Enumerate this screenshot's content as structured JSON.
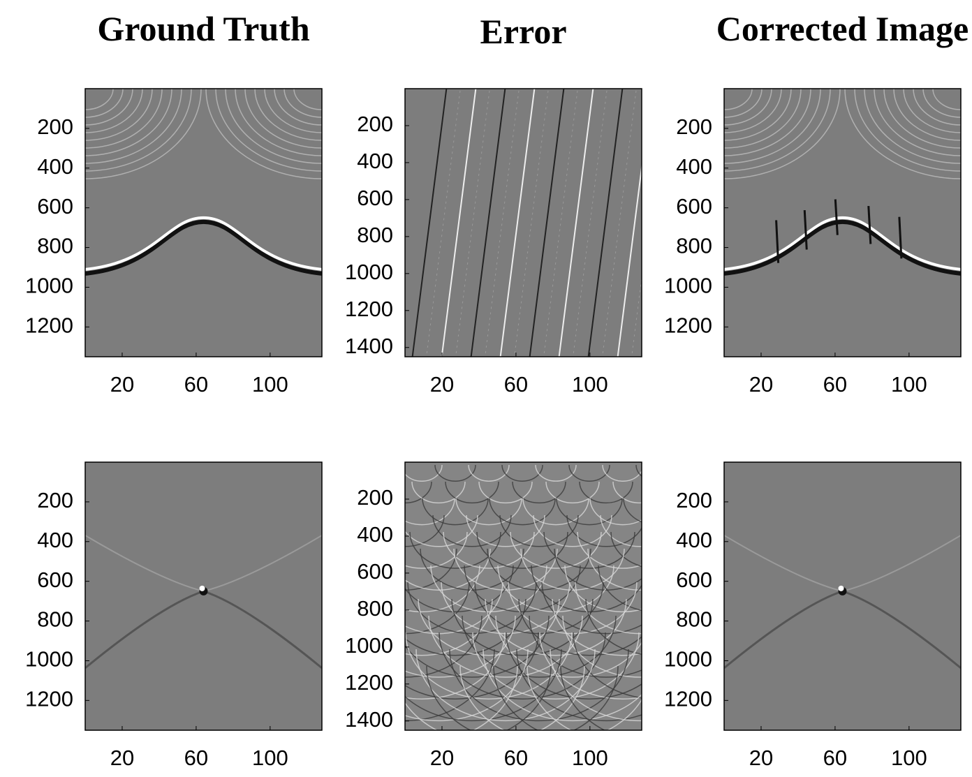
{
  "chart_data": [
    {
      "type": "image",
      "title": "Ground Truth",
      "xlim": [
        0,
        128
      ],
      "ylim": [
        0,
        1350
      ],
      "xticks": [
        20,
        60,
        100
      ],
      "yticks": [
        200,
        400,
        600,
        800,
        1000,
        1200
      ]
    },
    {
      "type": "image",
      "title": "Error",
      "xlim": [
        0,
        128
      ],
      "ylim": [
        0,
        1450
      ],
      "xticks": [
        20,
        60,
        100
      ],
      "yticks": [
        200,
        400,
        600,
        800,
        1000,
        1200,
        1400
      ]
    },
    {
      "type": "image",
      "title": "Corrected Image",
      "xlim": [
        0,
        128
      ],
      "ylim": [
        0,
        1350
      ],
      "xticks": [
        20,
        60,
        100
      ],
      "yticks": [
        200,
        400,
        600,
        800,
        1000,
        1200
      ]
    },
    {
      "type": "image",
      "xlim": [
        0,
        128
      ],
      "ylim": [
        0,
        1350
      ],
      "xticks": [
        20,
        60,
        100
      ],
      "yticks": [
        200,
        400,
        600,
        800,
        1000,
        1200
      ]
    },
    {
      "type": "image",
      "xlim": [
        0,
        128
      ],
      "ylim": [
        0,
        1450
      ],
      "xticks": [
        20,
        60,
        100
      ],
      "yticks": [
        200,
        400,
        600,
        800,
        1000,
        1200,
        1400
      ]
    },
    {
      "type": "image",
      "xlim": [
        0,
        128
      ],
      "ylim": [
        0,
        1350
      ],
      "xticks": [
        20,
        60,
        100
      ],
      "yticks": [
        200,
        400,
        600,
        800,
        1000,
        1200
      ]
    }
  ]
}
